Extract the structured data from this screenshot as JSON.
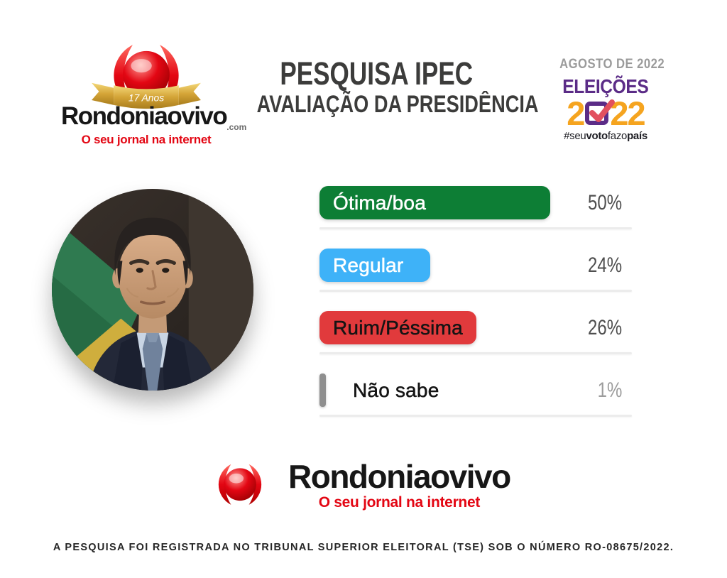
{
  "header": {
    "top_logo": {
      "ribbon_text": "17 Anos",
      "brand": "Rondoniaovivo",
      "domain_suffix": ".com",
      "tagline": "O seu jornal na internet"
    },
    "title_line1": "PESQUISA IPEC",
    "title_line2": "AVALIAÇÃO DA PRESIDÊNCIA",
    "date_label": "AGOSTO DE 2022",
    "election_logo": {
      "word": "ELEIÇÕES",
      "digit_before": "2",
      "digits_after": "22",
      "hashtag_seg1": "#seu",
      "hashtag_seg2": "voto",
      "hashtag_seg3": "fazo",
      "hashtag_seg4": "país"
    }
  },
  "chart_data": {
    "type": "bar",
    "orientation": "horizontal",
    "title": "PESQUISA IPEC — AVALIAÇÃO DA PRESIDÊNCIA",
    "subtitle": "AGOSTO DE 2022",
    "categories": [
      "Ótima/boa",
      "Regular",
      "Ruim/Péssima",
      "Não sabe"
    ],
    "values": [
      50,
      24,
      26,
      1
    ],
    "value_labels": [
      "50%",
      "24%",
      "26%",
      "1%"
    ],
    "bar_colors": [
      "#0d7e35",
      "#3eb2f8",
      "#e13a3c",
      "#8f8f8f"
    ],
    "category_label_colors": [
      "#ffffff",
      "#ffffff",
      "#141414",
      "#141414"
    ],
    "value_label_colors": [
      "#4f4f4f",
      "#4f4f4f",
      "#4f4f4f",
      "#9c9c9c"
    ],
    "label_placement": [
      "inside",
      "inside",
      "inside",
      "outside"
    ],
    "xlim": [
      0,
      100
    ],
    "gridlines": false,
    "legend": "none"
  },
  "bottom_logo": {
    "brand": "Rondoniaovivo",
    "tagline": "O seu jornal na internet"
  },
  "footer": {
    "registration_text": "A PESQUISA FOI REGISTRADA NO TRIBUNAL SUPERIOR ELEITORAL (TSE) SOB O NÚMERO RO-08675/2022."
  }
}
